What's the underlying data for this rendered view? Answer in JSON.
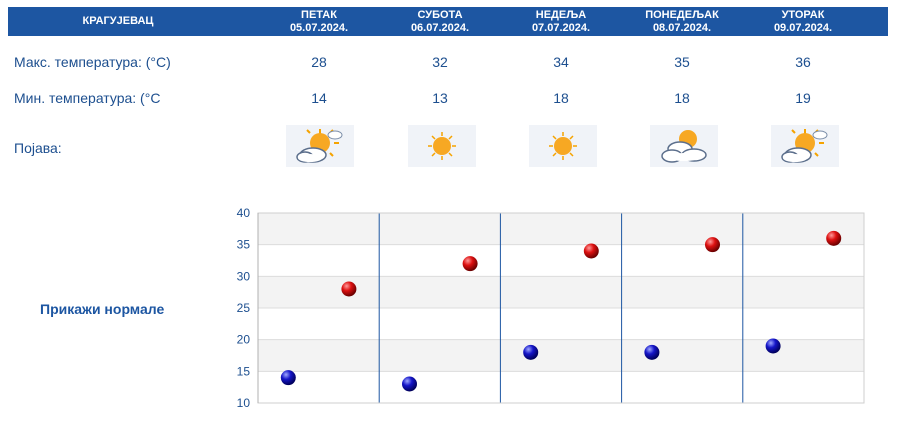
{
  "header": {
    "city": "КРАГУЈЕВАЦ",
    "days": [
      {
        "day": "ПЕТАК",
        "date": "05.07.2024."
      },
      {
        "day": "СУБОТА",
        "date": "06.07.2024."
      },
      {
        "day": "НЕДЕЉА",
        "date": "07.07.2024."
      },
      {
        "day": "ПОНЕДЕЉАК",
        "date": "08.07.2024."
      },
      {
        "day": "УТОРАК",
        "date": "09.07.2024."
      }
    ]
  },
  "rows": {
    "max_label": "Макс. температура: (°C)",
    "min_label": "Мин. температура: (°C",
    "phenomenon_label": "Појава:"
  },
  "forecast": {
    "max": [
      "28",
      "32",
      "34",
      "35",
      "36"
    ],
    "min": [
      "14",
      "13",
      "18",
      "18",
      "19"
    ],
    "icons": [
      "partly-sunny-icon",
      "sun-icon",
      "sun-icon",
      "sun-behind-clouds-icon",
      "partly-sunny-icon"
    ]
  },
  "show_normals_link": "Прикажи нормале",
  "chart_data": {
    "type": "scatter",
    "ylim": [
      10,
      40
    ],
    "yticks": [
      10,
      15,
      20,
      25,
      30,
      35,
      40
    ],
    "categories": [
      "05.07.2024.",
      "06.07.2024.",
      "07.07.2024.",
      "08.07.2024.",
      "09.07.2024."
    ],
    "series": [
      {
        "values": [
          28,
          32,
          34,
          35,
          36
        ],
        "color": "#cc0000"
      },
      {
        "values": [
          14,
          13,
          18,
          18,
          19
        ],
        "color": "#0a0aa8"
      }
    ],
    "grid": true
  }
}
